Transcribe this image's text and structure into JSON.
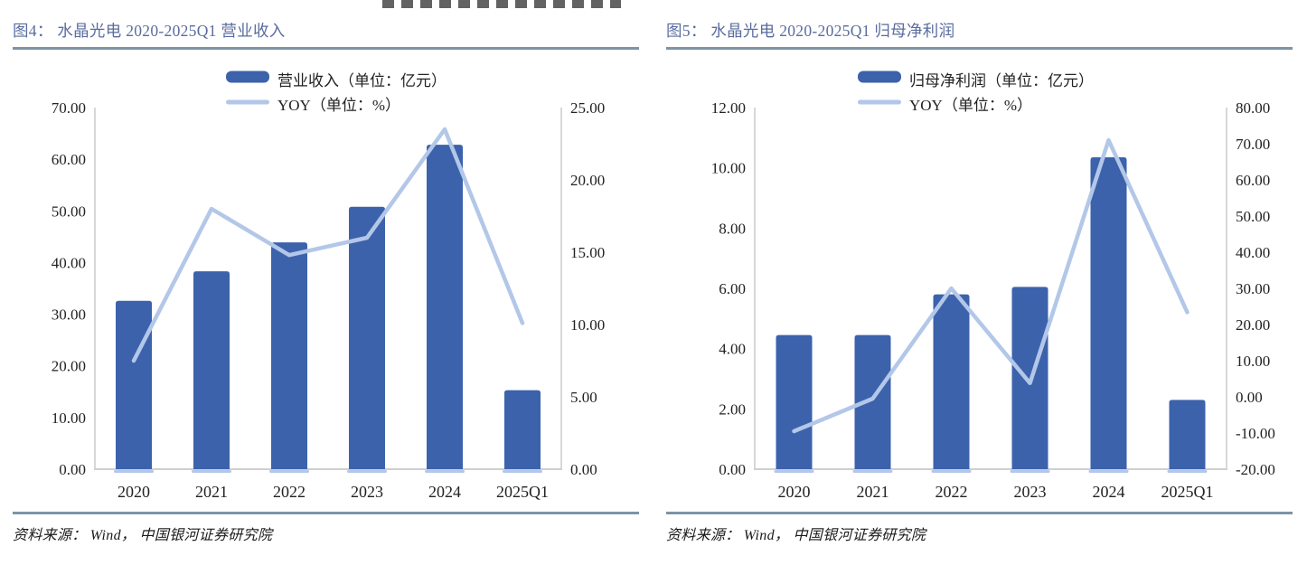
{
  "page": {
    "source_note": "资料来源： Wind， 中国银河证券研究院"
  },
  "colors": {
    "bar": "#3C62AC",
    "line": "#B3C7E8",
    "title_text": "#5A6C9F",
    "rule": "#7C94A5",
    "axis_line": "#CFCFCF",
    "axis_text": "#222222"
  },
  "chart_data": [
    {
      "type": "bar",
      "subtype": "combo-bar-line",
      "title": "图4： 水晶光电 2020-2025Q1 营业收入",
      "categories": [
        "2020",
        "2021",
        "2022",
        "2023",
        "2024",
        "2025Q1"
      ],
      "series": [
        {
          "name": "营业收入（单位：亿元）",
          "kind": "bar",
          "axis": "left",
          "values": [
            32.6,
            38.3,
            43.9,
            50.8,
            62.8,
            15.3
          ]
        },
        {
          "name": "YOY（单位：%）",
          "kind": "line",
          "axis": "right",
          "values": [
            7.5,
            18.0,
            14.8,
            16.0,
            23.5,
            10.1
          ]
        }
      ],
      "left_axis": {
        "min": 0,
        "max": 70,
        "step": 10
      },
      "right_axis": {
        "min": 0,
        "max": 25,
        "step": 5
      },
      "legend_position": "top-center",
      "grid": false,
      "source": "资料来源： Wind， 中国银河证券研究院"
    },
    {
      "type": "bar",
      "subtype": "combo-bar-line",
      "title": "图5： 水晶光电 2020-2025Q1 归母净利润",
      "categories": [
        "2020",
        "2021",
        "2022",
        "2023",
        "2024",
        "2025Q1"
      ],
      "series": [
        {
          "name": "归母净利润（单位：亿元）",
          "kind": "bar",
          "axis": "left",
          "values": [
            4.45,
            4.45,
            5.8,
            6.05,
            10.35,
            2.3
          ]
        },
        {
          "name": "YOY（单位：%）",
          "kind": "line",
          "axis": "right",
          "values": [
            -9.5,
            -0.5,
            30.0,
            3.8,
            71.0,
            23.4
          ]
        }
      ],
      "left_axis": {
        "min": 0,
        "max": 12,
        "step": 2
      },
      "right_axis": {
        "min": -20,
        "max": 80,
        "step": 10
      },
      "legend_position": "top-center",
      "grid": false,
      "source": "资料来源： Wind， 中国银河证券研究院"
    }
  ]
}
